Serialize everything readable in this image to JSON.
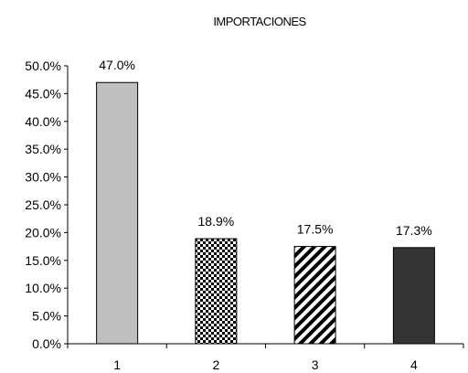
{
  "chart_data": {
    "type": "bar",
    "title": "IMPORTACIONES",
    "xlabel": "",
    "ylabel": "",
    "categories": [
      "1",
      "2",
      "3",
      "4"
    ],
    "values": [
      47.0,
      18.9,
      17.5,
      17.3
    ],
    "data_labels": [
      "47.0%",
      "18.9%",
      "17.5%",
      "17.3%"
    ],
    "ylim": [
      0,
      50
    ],
    "y_ticks": [
      0,
      5,
      10,
      15,
      20,
      25,
      30,
      35,
      40,
      45,
      50
    ],
    "y_tick_labels": [
      "0.0%",
      "5.0%",
      "10.0%",
      "15.0%",
      "20.0%",
      "25.0%",
      "30.0%",
      "35.0%",
      "40.0%",
      "45.0%",
      "50.0%"
    ],
    "grid": false,
    "legend": "none",
    "bar_fills": [
      "solid-light-gray",
      "dotted-checker",
      "diagonal-stripes",
      "solid-dark-gray"
    ],
    "colors": {
      "bar1": "#c0c0c0",
      "bar4": "#333333",
      "pattern_dark": "#000000",
      "pattern_light": "#ffffff"
    }
  }
}
